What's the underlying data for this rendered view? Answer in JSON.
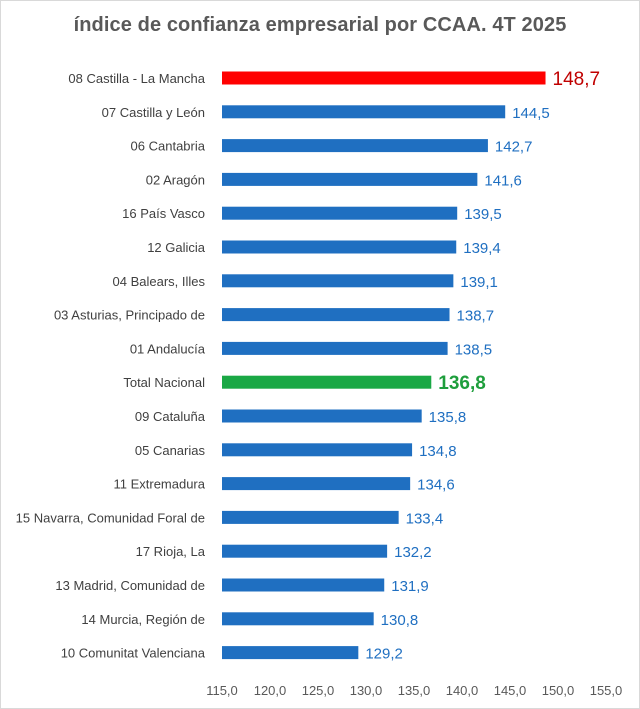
{
  "chart_data": {
    "type": "bar",
    "orientation": "horizontal",
    "title": "índice de confianza empresarial por CCAA. 4T 2025",
    "xlabel": "",
    "ylabel": "",
    "xlim": [
      115,
      155
    ],
    "ticks": [
      115,
      120,
      125,
      130,
      135,
      140,
      145,
      150,
      155
    ],
    "tick_labels": [
      "115,0",
      "120,0",
      "125,0",
      "130,0",
      "135,0",
      "140,0",
      "145,0",
      "150,0",
      "155,0"
    ],
    "grid": false,
    "legend": "none",
    "categories": [
      "08 Castilla - La Mancha",
      "07 Castilla y León",
      "06 Cantabria",
      "02 Aragón",
      "16 País Vasco",
      "12 Galicia",
      "04 Balears, Illes",
      "03 Asturias, Principado de",
      "01 Andalucía",
      "Total Nacional",
      "09 Cataluña",
      "05 Canarias",
      "11 Extremadura",
      "15 Navarra, Comunidad Foral de",
      "17 Rioja, La",
      "13 Madrid, Comunidad de",
      "14 Murcia, Región de",
      "10 Comunitat Valenciana"
    ],
    "values": [
      148.7,
      144.5,
      142.7,
      141.6,
      139.5,
      139.4,
      139.1,
      138.7,
      138.5,
      136.8,
      135.8,
      134.8,
      134.6,
      133.4,
      132.2,
      131.9,
      130.8,
      129.2
    ],
    "value_labels": [
      "148,7",
      "144,5",
      "142,7",
      "141,6",
      "139,5",
      "139,4",
      "139,1",
      "138,7",
      "138,5",
      "136,8",
      "135,8",
      "134,8",
      "134,6",
      "133,4",
      "132,2",
      "131,9",
      "130,8",
      "129,2"
    ],
    "colors": {
      "default": "#1f6fc1",
      "highlight_max": "#ff0000",
      "highlight_max_label": "#c00000",
      "highlight_total": "#1aa845",
      "highlight_total_label": "#1e9e3c",
      "label": "#1f6fc1",
      "axis_text": "#595959",
      "category_text": "#404040"
    },
    "highlights": {
      "08 Castilla - La Mancha": "max",
      "Total Nacional": "total"
    }
  }
}
